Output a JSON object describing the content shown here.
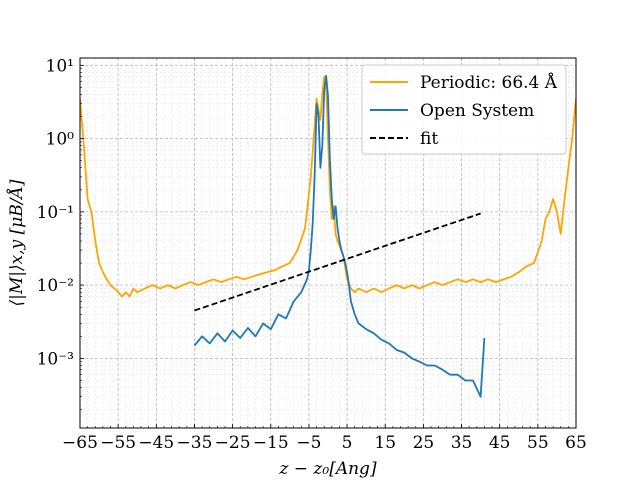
{
  "chart_data": {
    "type": "line",
    "title": "",
    "xlabel": "z − z₀[Ang]",
    "ylabel": "⟨|M|⟩x,y [μB/Å]",
    "xlim": [
      -65,
      65
    ],
    "ylim_log10": [
      -3.95,
      1.1
    ],
    "yscale": "log",
    "x_ticks": [
      -65,
      -55,
      -45,
      -35,
      -25,
      -15,
      -5,
      5,
      15,
      25,
      35,
      45,
      55,
      65
    ],
    "x_tick_labels": [
      "−65",
      "−55",
      "−45",
      "−35",
      "−25",
      "−15",
      "−5",
      "5",
      "15",
      "25",
      "35",
      "45",
      "55",
      "65"
    ],
    "y_ticks_log10": [
      -3,
      -2,
      -1,
      0,
      1
    ],
    "y_tick_labels": [
      "10⁻³",
      "10⁻²",
      "10⁻¹",
      "10⁰",
      "10¹"
    ],
    "grid": true,
    "legend_position": "top-right",
    "series": [
      {
        "name": "Periodic: 66.4 Å",
        "color": "#ffa500",
        "style": "solid",
        "x": [
          -65,
          -64,
          -63,
          -62,
          -61,
          -60,
          -59,
          -58,
          -57,
          -56,
          -55,
          -54,
          -53,
          -52,
          -51,
          -50,
          -48,
          -46,
          -44,
          -42,
          -40,
          -38,
          -36,
          -34,
          -32,
          -30,
          -28,
          -26,
          -24,
          -22,
          -20,
          -18,
          -16,
          -14,
          -12,
          -10,
          -8,
          -6,
          -4.5,
          -3,
          -2,
          -1.5,
          -1,
          -0.5,
          0,
          0.5,
          1,
          1.5,
          2,
          2.5,
          3,
          4,
          5,
          6,
          7,
          8,
          10,
          12,
          14,
          16,
          18,
          20,
          22,
          24,
          26,
          28,
          30,
          32,
          34,
          36,
          38,
          40,
          42,
          44,
          46,
          48,
          50,
          52,
          54,
          56,
          57,
          58,
          59,
          60,
          61,
          62,
          63,
          64,
          65
        ],
        "y": [
          3.5,
          0.8,
          0.15,
          0.1,
          0.04,
          0.02,
          0.015,
          0.012,
          0.01,
          0.009,
          0.008,
          0.007,
          0.008,
          0.007,
          0.009,
          0.008,
          0.009,
          0.01,
          0.009,
          0.01,
          0.009,
          0.01,
          0.011,
          0.01,
          0.011,
          0.012,
          0.011,
          0.012,
          0.013,
          0.012,
          0.013,
          0.014,
          0.015,
          0.016,
          0.018,
          0.02,
          0.03,
          0.06,
          0.3,
          3.5,
          1.8,
          4.0,
          7.0,
          5.5,
          1.0,
          0.2,
          0.08,
          0.12,
          0.05,
          0.04,
          0.035,
          0.025,
          0.012,
          0.009,
          0.008,
          0.009,
          0.008,
          0.009,
          0.008,
          0.009,
          0.01,
          0.009,
          0.01,
          0.009,
          0.01,
          0.011,
          0.01,
          0.011,
          0.012,
          0.011,
          0.012,
          0.011,
          0.012,
          0.011,
          0.012,
          0.013,
          0.015,
          0.018,
          0.02,
          0.04,
          0.08,
          0.1,
          0.15,
          0.1,
          0.05,
          0.15,
          0.4,
          1.0,
          3.5
        ]
      },
      {
        "name": "Open System",
        "color": "#1f77b4",
        "style": "solid",
        "x": [
          -35,
          -33,
          -31,
          -29,
          -27,
          -25,
          -23,
          -21,
          -19,
          -17,
          -15,
          -13,
          -11,
          -9,
          -7,
          -5.5,
          -5,
          -4.5,
          -4,
          -3.5,
          -3,
          -2.5,
          -2,
          -1.5,
          -1,
          -0.5,
          0,
          0.5,
          1,
          1.5,
          2,
          2.5,
          3,
          3.5,
          4,
          4.5,
          5,
          5.5,
          6,
          7,
          8,
          10,
          12,
          14,
          16,
          18,
          20,
          22,
          24,
          26,
          28,
          30,
          32,
          34,
          36,
          38,
          40,
          41
        ],
        "y": [
          0.0015,
          0.002,
          0.0016,
          0.0022,
          0.0017,
          0.0024,
          0.0019,
          0.0026,
          0.002,
          0.003,
          0.0025,
          0.004,
          0.0035,
          0.006,
          0.008,
          0.012,
          0.016,
          0.03,
          0.07,
          0.3,
          3.0,
          2.0,
          0.4,
          0.8,
          4.5,
          7.2,
          3.8,
          0.5,
          0.15,
          0.08,
          0.12,
          0.06,
          0.04,
          0.03,
          0.025,
          0.02,
          0.015,
          0.01,
          0.006,
          0.004,
          0.003,
          0.0025,
          0.0022,
          0.0018,
          0.0016,
          0.0013,
          0.0012,
          0.001,
          0.0009,
          0.0008,
          0.0008,
          0.0007,
          0.0006,
          0.0006,
          0.0005,
          0.0005,
          0.0003,
          0.0019
        ]
      },
      {
        "name": "fit",
        "color": "#000000",
        "style": "dashed",
        "x": [
          -35,
          40
        ],
        "y": [
          0.0045,
          0.095
        ]
      }
    ]
  }
}
